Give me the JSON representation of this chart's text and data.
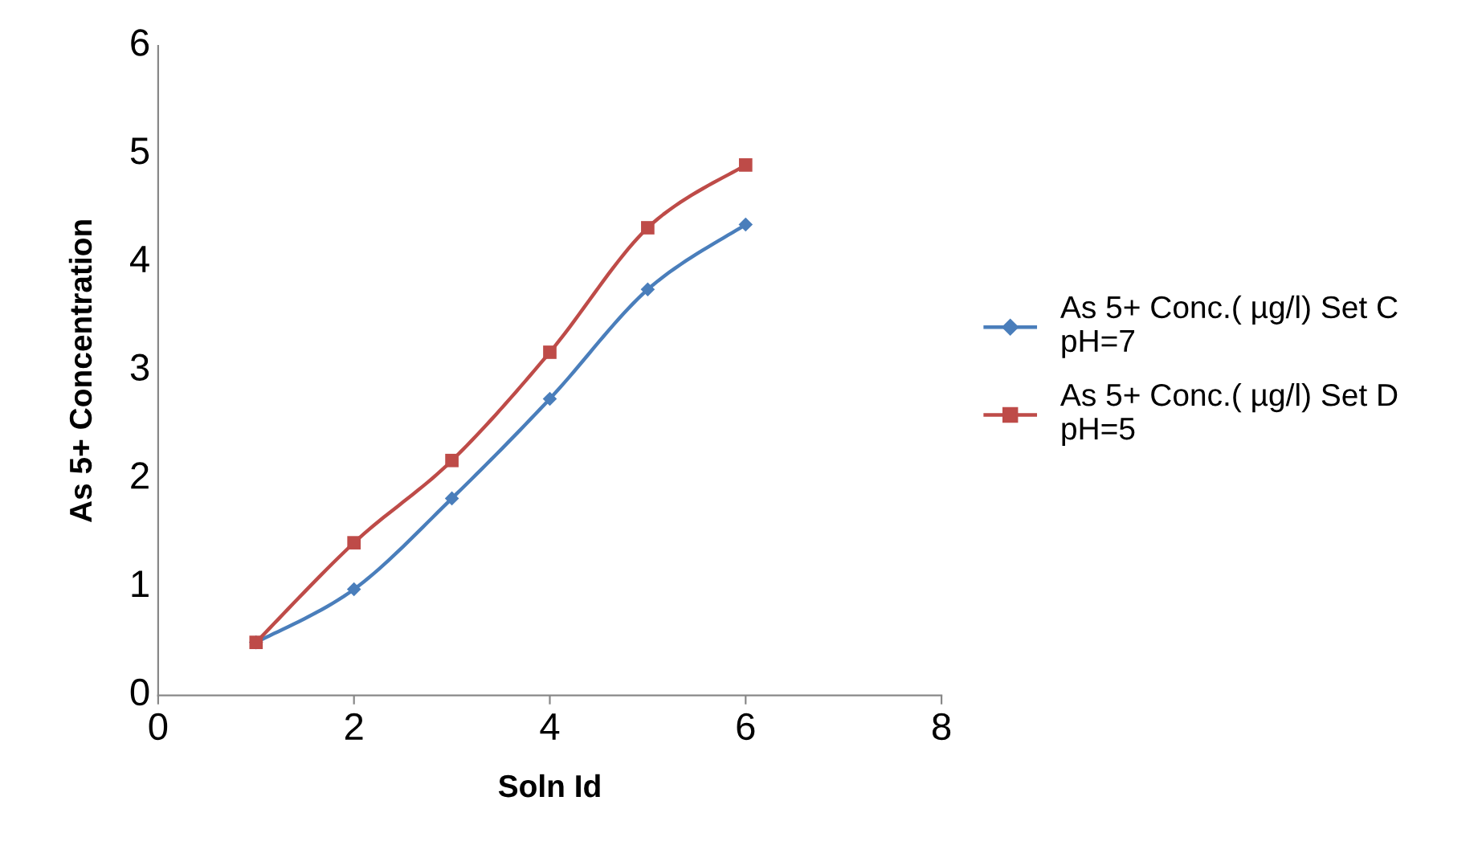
{
  "chart_data": {
    "type": "line",
    "xlabel": "Soln Id",
    "ylabel": "As 5+ Concentration",
    "x": [
      1,
      2,
      3,
      4,
      5,
      6
    ],
    "series": [
      {
        "name": "As 5+ Conc.( µg/l) Set C pH=7",
        "color": "#4a7ebb",
        "values": [
          0.49,
          0.98,
          1.82,
          2.74,
          3.75,
          4.35
        ],
        "marker": "diamond"
      },
      {
        "name": "As 5+ Conc.( µg/l) Set D pH=5",
        "color": "#be4b48",
        "values": [
          0.49,
          1.41,
          2.17,
          3.17,
          4.32,
          4.9
        ],
        "marker": "square"
      }
    ],
    "xlim": [
      0,
      8
    ],
    "xticks": [
      0,
      2,
      4,
      6,
      8
    ],
    "ylim": [
      0,
      6
    ],
    "yticks": [
      0,
      1,
      2,
      3,
      4,
      5,
      6
    ],
    "grid": false,
    "legend": "right",
    "line_style": "solid"
  }
}
